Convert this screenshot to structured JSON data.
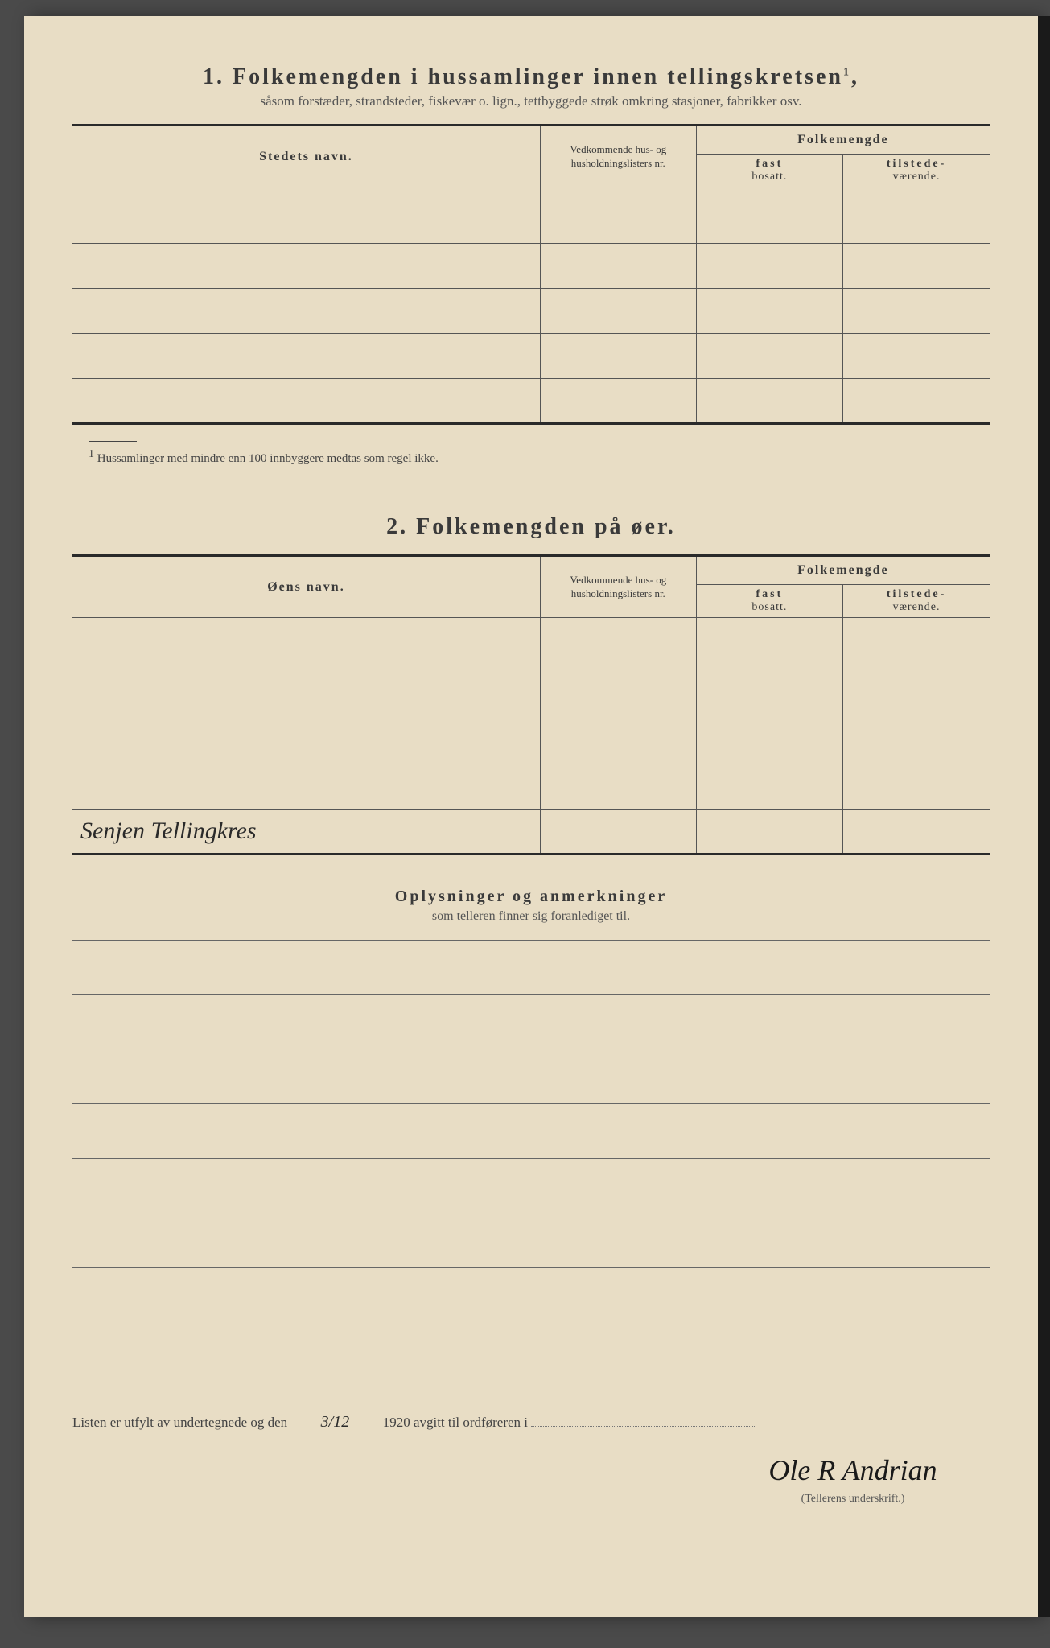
{
  "page": {
    "background_color": "#e8ddc5",
    "text_color": "#3a3a3a",
    "rule_color": "#555555",
    "heavy_rule_color": "#2a2a2a"
  },
  "section1": {
    "number": "1.",
    "title": "Folkemengden i hussamlinger innen tellingskretsen",
    "title_sup": "1",
    "title_suffix": ",",
    "subtitle": "såsom forstæder, strandsteder, fiskevær o. lign., tettbyggede strøk omkring stasjoner, fabrikker osv.",
    "columns": {
      "name": "Stedets navn.",
      "lists": "Vedkommende hus- og husholdningslisters nr.",
      "folkemengde": "Folkemengde",
      "fast_top": "fast",
      "fast_bottom": "bosatt.",
      "til_top": "tilstede-",
      "til_bottom": "værende."
    },
    "row_count": 5,
    "footnote_marker": "1",
    "footnote_text": "Hussamlinger med mindre enn 100 innbyggere medtas som regel ikke."
  },
  "section2": {
    "number": "2.",
    "title": "Folkemengden på øer.",
    "columns": {
      "name": "Øens navn.",
      "lists": "Vedkommende hus- og husholdningslisters nr.",
      "folkemengde": "Folkemengde",
      "fast_top": "fast",
      "fast_bottom": "bosatt.",
      "til_top": "tilstede-",
      "til_bottom": "værende."
    },
    "rows": [
      {
        "name": "",
        "lists": "",
        "fast": "",
        "til": ""
      },
      {
        "name": "",
        "lists": "",
        "fast": "",
        "til": ""
      },
      {
        "name": "",
        "lists": "",
        "fast": "",
        "til": ""
      },
      {
        "name": "",
        "lists": "",
        "fast": "",
        "til": ""
      },
      {
        "name": "Senjen Tellingkres",
        "lists": "",
        "fast": "",
        "til": ""
      }
    ]
  },
  "remarks": {
    "title": "Oplysninger og anmerkninger",
    "subtitle": "som telleren finner sig foranlediget til.",
    "line_count": 6
  },
  "footer": {
    "line_prefix": "Listen er utfylt av undertegnede og den",
    "date_value": "3/12",
    "year_text": "1920",
    "line_suffix": "avgitt til ordføreren i",
    "signature": "Ole R Andrian",
    "signature_caption": "(Tellerens underskrift.)"
  }
}
